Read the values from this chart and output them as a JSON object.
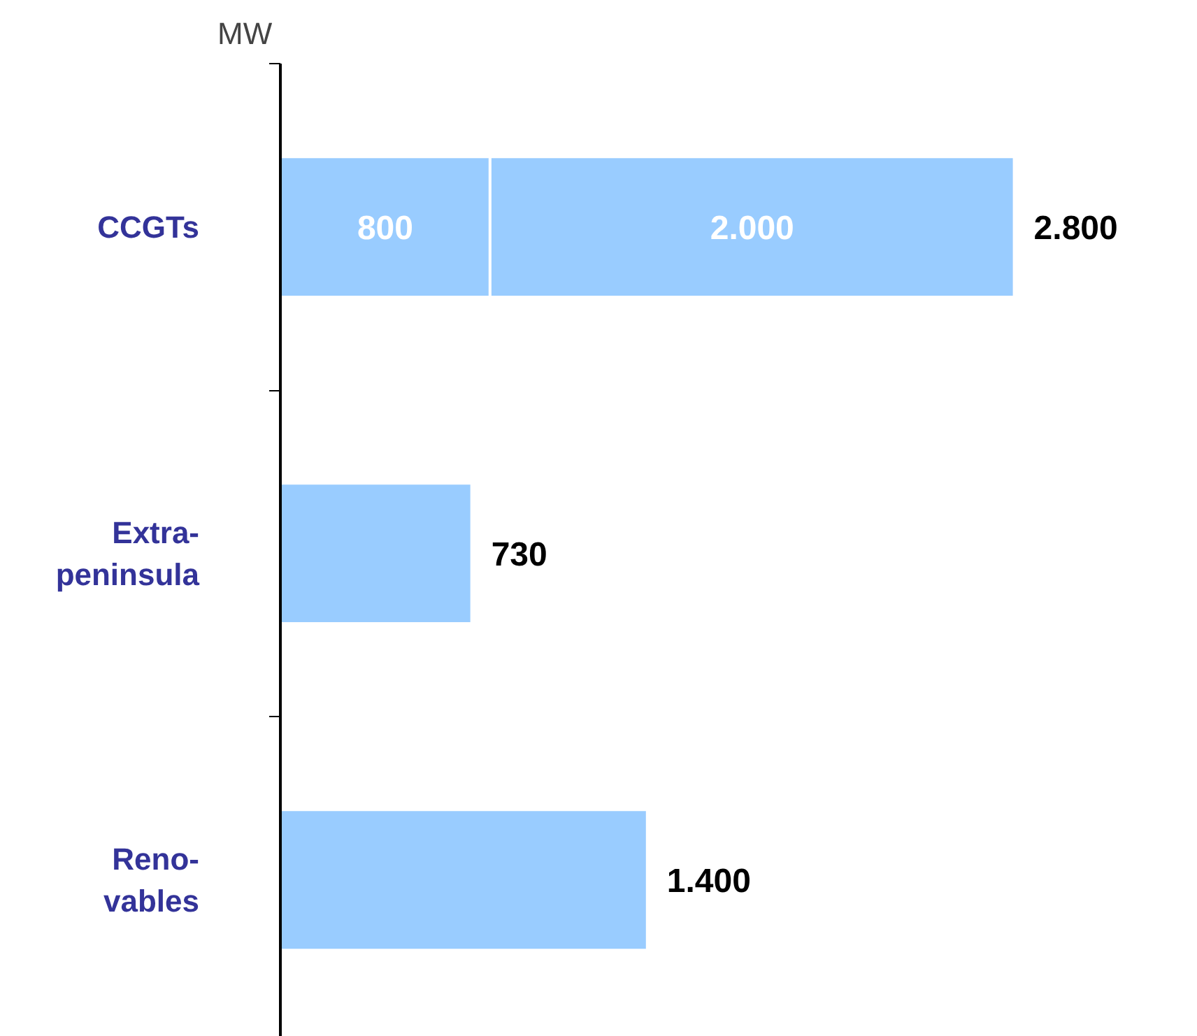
{
  "chart_data": {
    "type": "bar",
    "orientation": "horizontal",
    "stacked": true,
    "ylabel": "MW",
    "categories": [
      "CCGTs",
      "Extra-peninsula",
      "Reno-vables"
    ],
    "series": [
      {
        "color": "#99ccff",
        "values": [
          800,
          730,
          1400
        ],
        "value_labels": [
          "800",
          null,
          null
        ]
      },
      {
        "color": "#99ccff",
        "values": [
          2000,
          null,
          null
        ],
        "value_labels": [
          "2.000",
          null,
          null
        ]
      }
    ],
    "totals": [
      "2.800",
      "730",
      "1.400"
    ],
    "tick_labels": "y",
    "grid": false
  }
}
